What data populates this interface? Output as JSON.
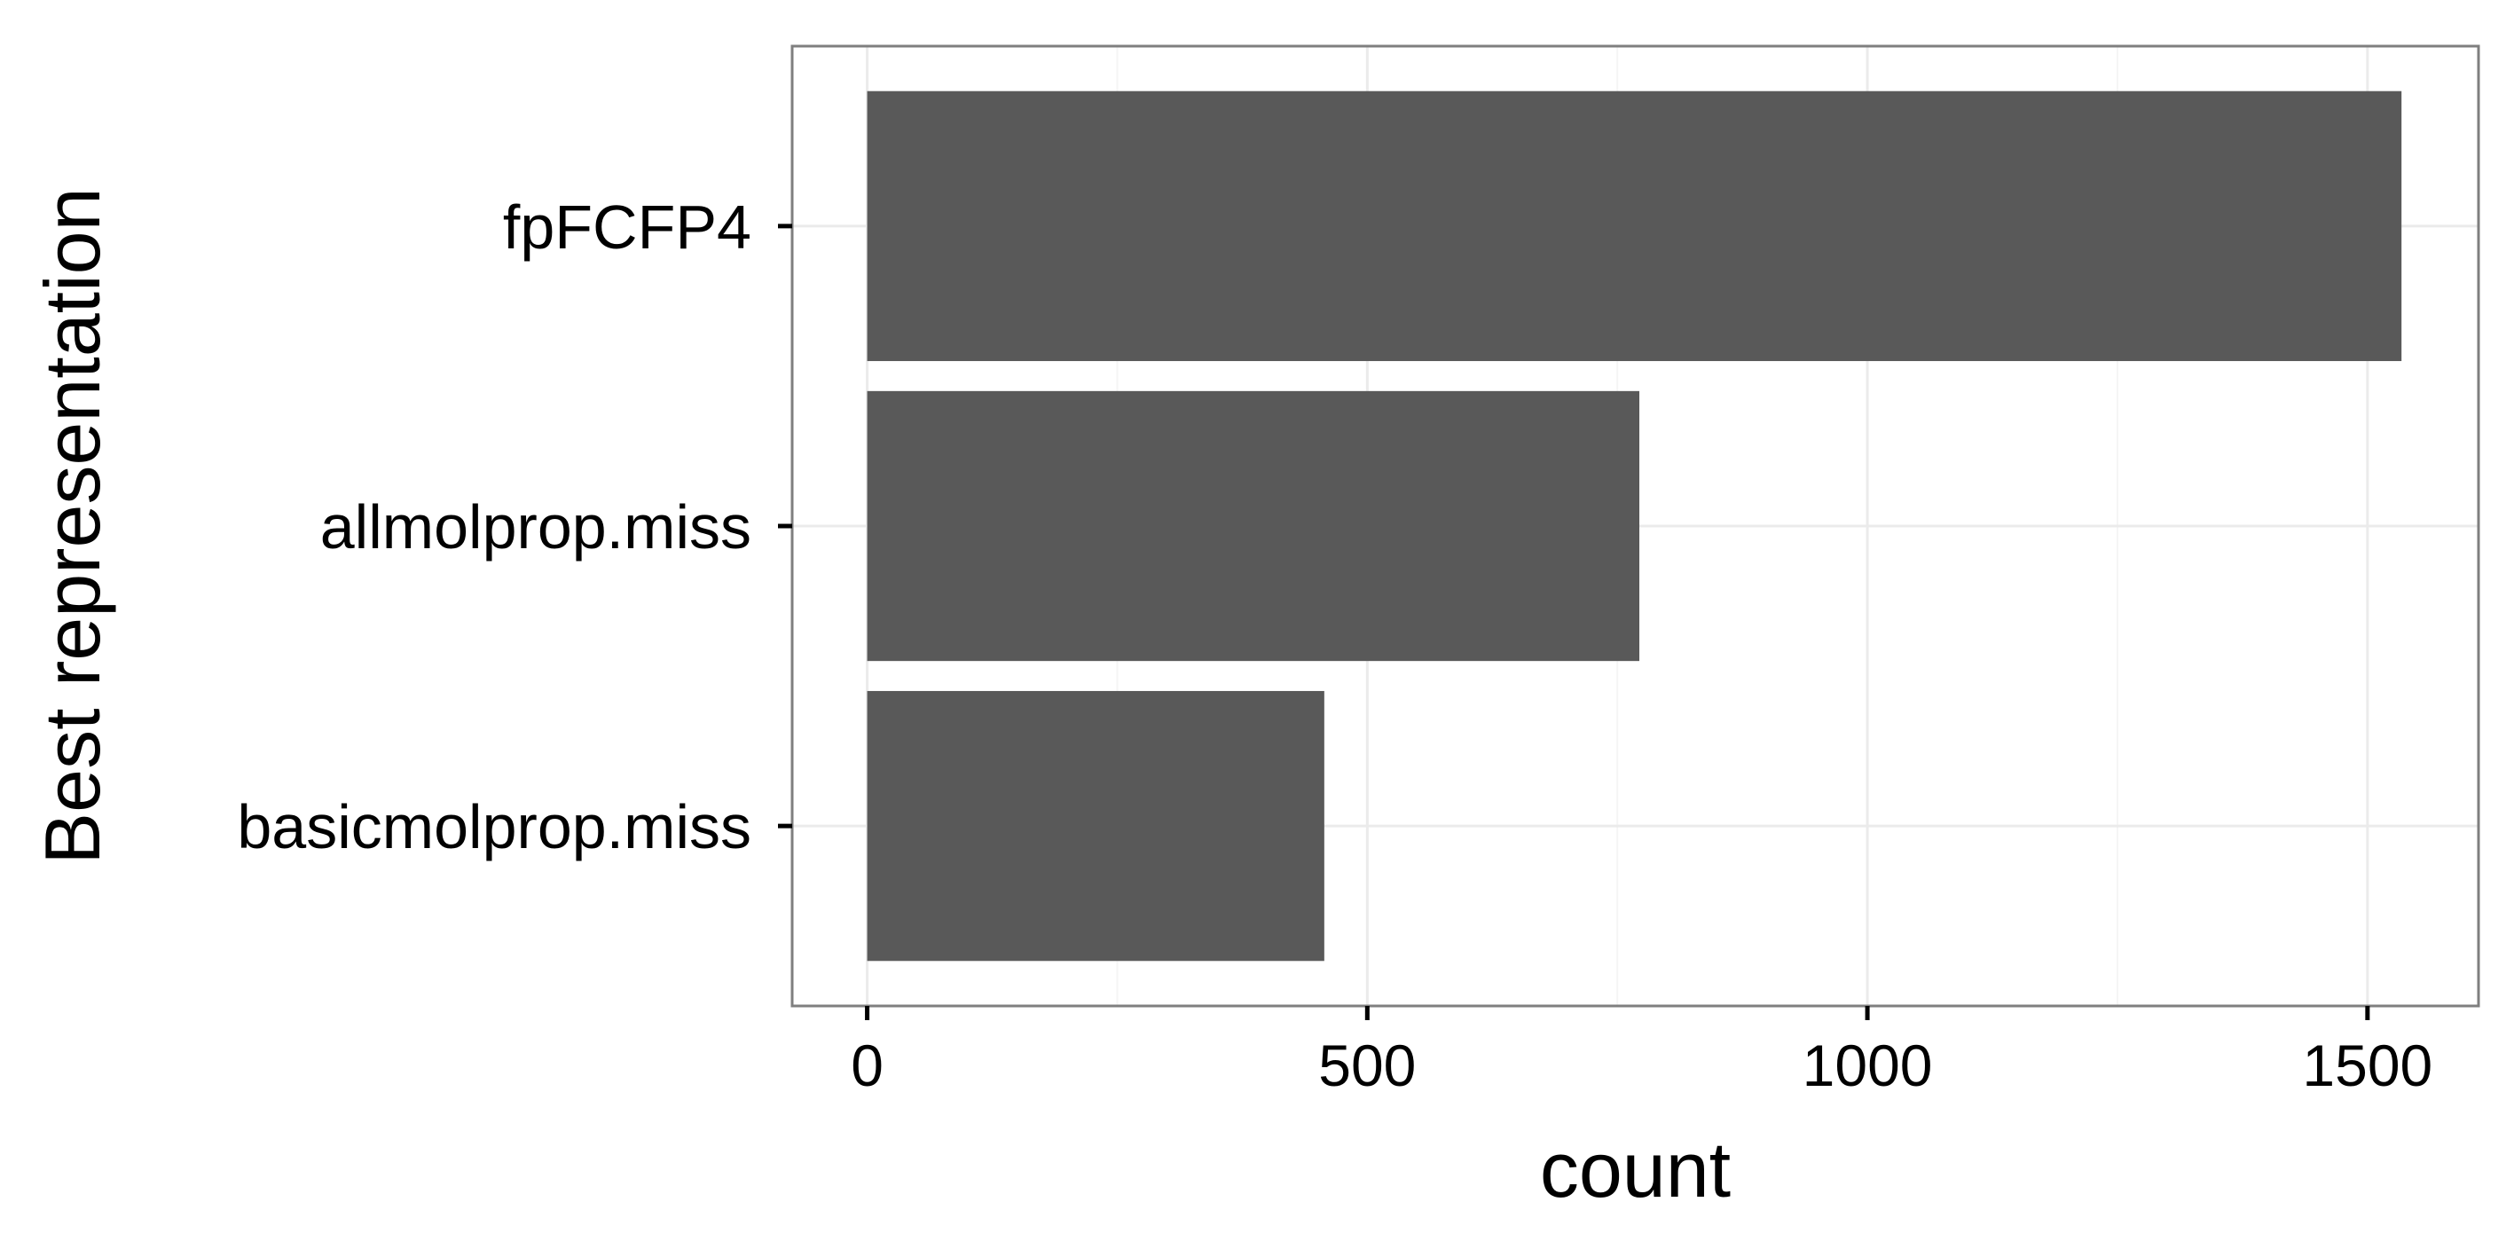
{
  "chart_data": {
    "type": "bar",
    "orientation": "horizontal",
    "categories": [
      "basicmolprop.miss",
      "allmolprop.miss",
      "fpFCFP4"
    ],
    "values": [
      457,
      772,
      1534
    ],
    "title": "",
    "xlabel": "count",
    "ylabel": "Best representation",
    "xlim": [
      -75,
      1611
    ],
    "xticks": [
      0,
      500,
      1000,
      1500
    ],
    "xtick_labels": [
      "0",
      "500",
      "1000",
      "1500"
    ],
    "grid": true,
    "legend": "none",
    "colors": {
      "bar": "#595959",
      "panel_border": "#7f7f7f",
      "grid_major": "#ebebeb",
      "grid_minor": "#f5f5f5",
      "background": "#ffffff"
    }
  }
}
